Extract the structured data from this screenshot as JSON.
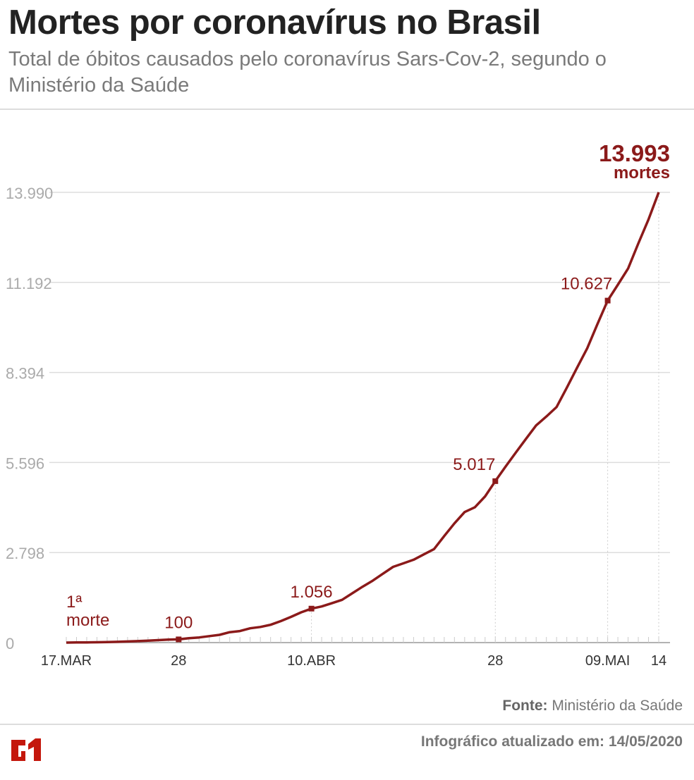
{
  "header": {
    "title": "Mortes por coronavírus no Brasil",
    "subtitle": "Total de óbitos causados pelo coronavírus Sars-Cov-2, segundo o Ministério da Saúde"
  },
  "footer": {
    "source_label": "Fonte:",
    "source": "Ministério da Saúde",
    "updated": "Infográfico atualizado em: 14/05/2020",
    "logo": "G1"
  },
  "colors": {
    "line": "#8b1a1a",
    "grid": "#dddddd",
    "axis_text": "#aaaaaa",
    "logo": "#c4170c"
  },
  "chart_data": {
    "type": "line",
    "title": "Mortes por coronavírus no Brasil",
    "x_start": "2020-03-17",
    "x_end": "2020-05-14",
    "x_ticks": [
      {
        "date": "2020-03-17",
        "label": "17.MAR"
      },
      {
        "date": "2020-03-28",
        "label": "28"
      },
      {
        "date": "2020-04-10",
        "label": "10.ABR"
      },
      {
        "date": "2020-04-28",
        "label": "28"
      },
      {
        "date": "2020-05-09",
        "label": "09.MAI"
      },
      {
        "date": "2020-05-14",
        "label": "14"
      }
    ],
    "y_ticks": [
      {
        "value": 0,
        "label": "0"
      },
      {
        "value": 2798,
        "label": "2.798"
      },
      {
        "value": 5596,
        "label": "5.596"
      },
      {
        "value": 8394,
        "label": "8.394"
      },
      {
        "value": 11192,
        "label": "11.192"
      },
      {
        "value": 13990,
        "label": "13.990"
      }
    ],
    "ylim": [
      0,
      13990
    ],
    "grid": true,
    "values": [
      1,
      4,
      7,
      11,
      18,
      25,
      34,
      46,
      59,
      77,
      92,
      100,
      136,
      159,
      201,
      240,
      324,
      359,
      445,
      486,
      553,
      667,
      800,
      941,
      1056,
      1124,
      1223,
      1328,
      1532,
      1736,
      1924,
      2141,
      2354,
      2462,
      2575,
      2741,
      2906,
      3313,
      3704,
      4057,
      4205,
      4543,
      5017,
      5466,
      5901,
      6329,
      6750,
      7025,
      7321,
      7921,
      8536,
      9146,
      9897,
      10627,
      11123,
      11625,
      12400,
      13149,
      13993
    ],
    "annotations": [
      {
        "date": "2020-03-17",
        "value": 1,
        "label_line1": "1ª",
        "label_line2": "morte"
      },
      {
        "date": "2020-03-28",
        "value": 100,
        "label": "100"
      },
      {
        "date": "2020-04-10",
        "value": 1056,
        "label": "1.056"
      },
      {
        "date": "2020-04-28",
        "value": 5017,
        "label": "5.017"
      },
      {
        "date": "2020-05-09",
        "value": 10627,
        "label": "10.627"
      },
      {
        "date": "2020-05-14",
        "value": 13993,
        "label": "13.993",
        "label2": "mortes"
      }
    ]
  }
}
